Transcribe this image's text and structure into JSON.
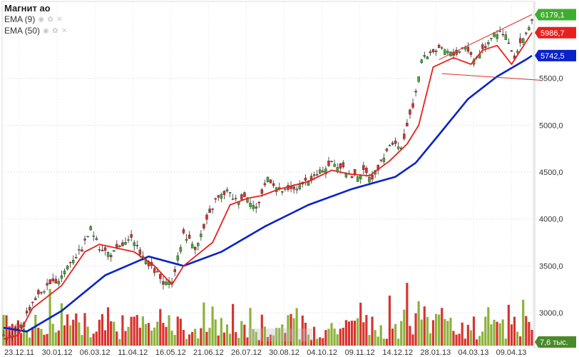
{
  "legend": {
    "title": "Магнит ао",
    "ema9_label": "EMA (9)",
    "ema50_label": "EMA (50)",
    "icons": [
      "eye-icon",
      "gear-icon",
      "close-icon"
    ]
  },
  "chart_data": {
    "type": "candlestick",
    "y_range": [
      2650,
      6320
    ],
    "y_ticks": [
      {
        "value": 5500,
        "label": "5500,0"
      },
      {
        "value": 5000,
        "label": "5000,0"
      },
      {
        "value": 4500,
        "label": "4500,0"
      },
      {
        "value": 4000,
        "label": "4000,0"
      },
      {
        "value": 3500,
        "label": "3500,0"
      },
      {
        "value": 3000,
        "label": "3000,0"
      }
    ],
    "x_labels": [
      "23.12.11",
      "30.01.12",
      "06.03.12",
      "11.04.12",
      "16.05.12",
      "21.06.12",
      "26.07.12",
      "30.08.12",
      "04.10.12",
      "09.11.12",
      "14.12.12",
      "28.01.13",
      "04.03.13",
      "09.04.13"
    ],
    "price_path": [
      [
        0,
        2760
      ],
      [
        2,
        2720
      ],
      [
        6,
        2850
      ],
      [
        10,
        3120
      ],
      [
        14,
        3250
      ],
      [
        19,
        3350
      ],
      [
        23,
        3550
      ],
      [
        27,
        3680
      ],
      [
        30,
        3900
      ],
      [
        33,
        3700
      ],
      [
        37,
        3620
      ],
      [
        40,
        3700
      ],
      [
        44,
        3780
      ],
      [
        47,
        3650
      ],
      [
        50,
        3500
      ],
      [
        53,
        3420
      ],
      [
        55,
        3300
      ],
      [
        58,
        3320
      ],
      [
        62,
        3850
      ],
      [
        66,
        3700
      ],
      [
        69,
        3900
      ],
      [
        73,
        4200
      ],
      [
        77,
        4300
      ],
      [
        80,
        4200
      ],
      [
        84,
        4250
      ],
      [
        87,
        4100
      ],
      [
        91,
        4450
      ],
      [
        95,
        4300
      ],
      [
        98,
        4300
      ],
      [
        102,
        4350
      ],
      [
        105,
        4400
      ],
      [
        109,
        4500
      ],
      [
        113,
        4600
      ],
      [
        116,
        4550
      ],
      [
        120,
        4450
      ],
      [
        124,
        4500
      ],
      [
        127,
        4450
      ],
      [
        130,
        4600
      ],
      [
        133,
        4800
      ],
      [
        137,
        4750
      ],
      [
        141,
        5200
      ],
      [
        144,
        5700
      ],
      [
        148,
        5800
      ],
      [
        152,
        5800
      ],
      [
        155,
        5750
      ],
      [
        159,
        5850
      ],
      [
        162,
        5700
      ],
      [
        166,
        5850
      ],
      [
        169,
        6000
      ],
      [
        173,
        5950
      ],
      [
        176,
        5700
      ],
      [
        180,
        6000
      ],
      [
        182,
        6090
      ]
    ],
    "ema9": [
      [
        0,
        2720
      ],
      [
        5,
        2760
      ],
      [
        10,
        3050
      ],
      [
        20,
        3290
      ],
      [
        28,
        3650
      ],
      [
        33,
        3730
      ],
      [
        45,
        3650
      ],
      [
        52,
        3500
      ],
      [
        58,
        3300
      ],
      [
        62,
        3500
      ],
      [
        66,
        3600
      ],
      [
        72,
        3750
      ],
      [
        78,
        4150
      ],
      [
        84,
        4220
      ],
      [
        89,
        4250
      ],
      [
        95,
        4320
      ],
      [
        105,
        4400
      ],
      [
        113,
        4520
      ],
      [
        119,
        4480
      ],
      [
        126,
        4460
      ],
      [
        133,
        4620
      ],
      [
        139,
        4800
      ],
      [
        143,
        5000
      ],
      [
        148,
        5620
      ],
      [
        155,
        5720
      ],
      [
        161,
        5650
      ],
      [
        165,
        5800
      ],
      [
        170,
        5850
      ],
      [
        175,
        5650
      ],
      [
        180,
        5890
      ],
      [
        182,
        5987
      ]
    ],
    "ema50": [
      [
        0,
        2840
      ],
      [
        8,
        2800
      ],
      [
        20,
        3020
      ],
      [
        35,
        3400
      ],
      [
        50,
        3600
      ],
      [
        62,
        3500
      ],
      [
        75,
        3650
      ],
      [
        90,
        3920
      ],
      [
        105,
        4150
      ],
      [
        120,
        4320
      ],
      [
        135,
        4450
      ],
      [
        142,
        4600
      ],
      [
        150,
        4900
      ],
      [
        160,
        5280
      ],
      [
        170,
        5520
      ],
      [
        180,
        5700
      ],
      [
        182,
        5742
      ]
    ],
    "series": [
      {
        "name": "EMA (9)",
        "color": "#e8201c",
        "last": 5986.7
      },
      {
        "name": "EMA (50)",
        "color": "#0a22c8",
        "last": 5742.5
      }
    ],
    "last_price": 6179.1,
    "price_tags": [
      {
        "label": "6179,1",
        "value": 6179.1,
        "color": "#3fae2e"
      },
      {
        "label": "5986,7",
        "value": 5986.7,
        "color": "#e8201c"
      },
      {
        "label": "5742,5",
        "value": 5742.5,
        "color": "#0a22c8"
      }
    ],
    "volume_tag": {
      "label": "7,6 тыс.",
      "color": "#4a8a2a"
    },
    "channel": {
      "upper": [
        [
          150,
          5700
        ],
        [
          182,
          6180
        ]
      ],
      "lower": [
        [
          151,
          5550
        ],
        [
          185,
          5480
        ]
      ]
    },
    "colors": {
      "up": "#3fae2e",
      "down": "#d9322c",
      "vol_up": "#8cb23a",
      "vol_down": "#d8332e",
      "channel": "#d9322c"
    }
  }
}
